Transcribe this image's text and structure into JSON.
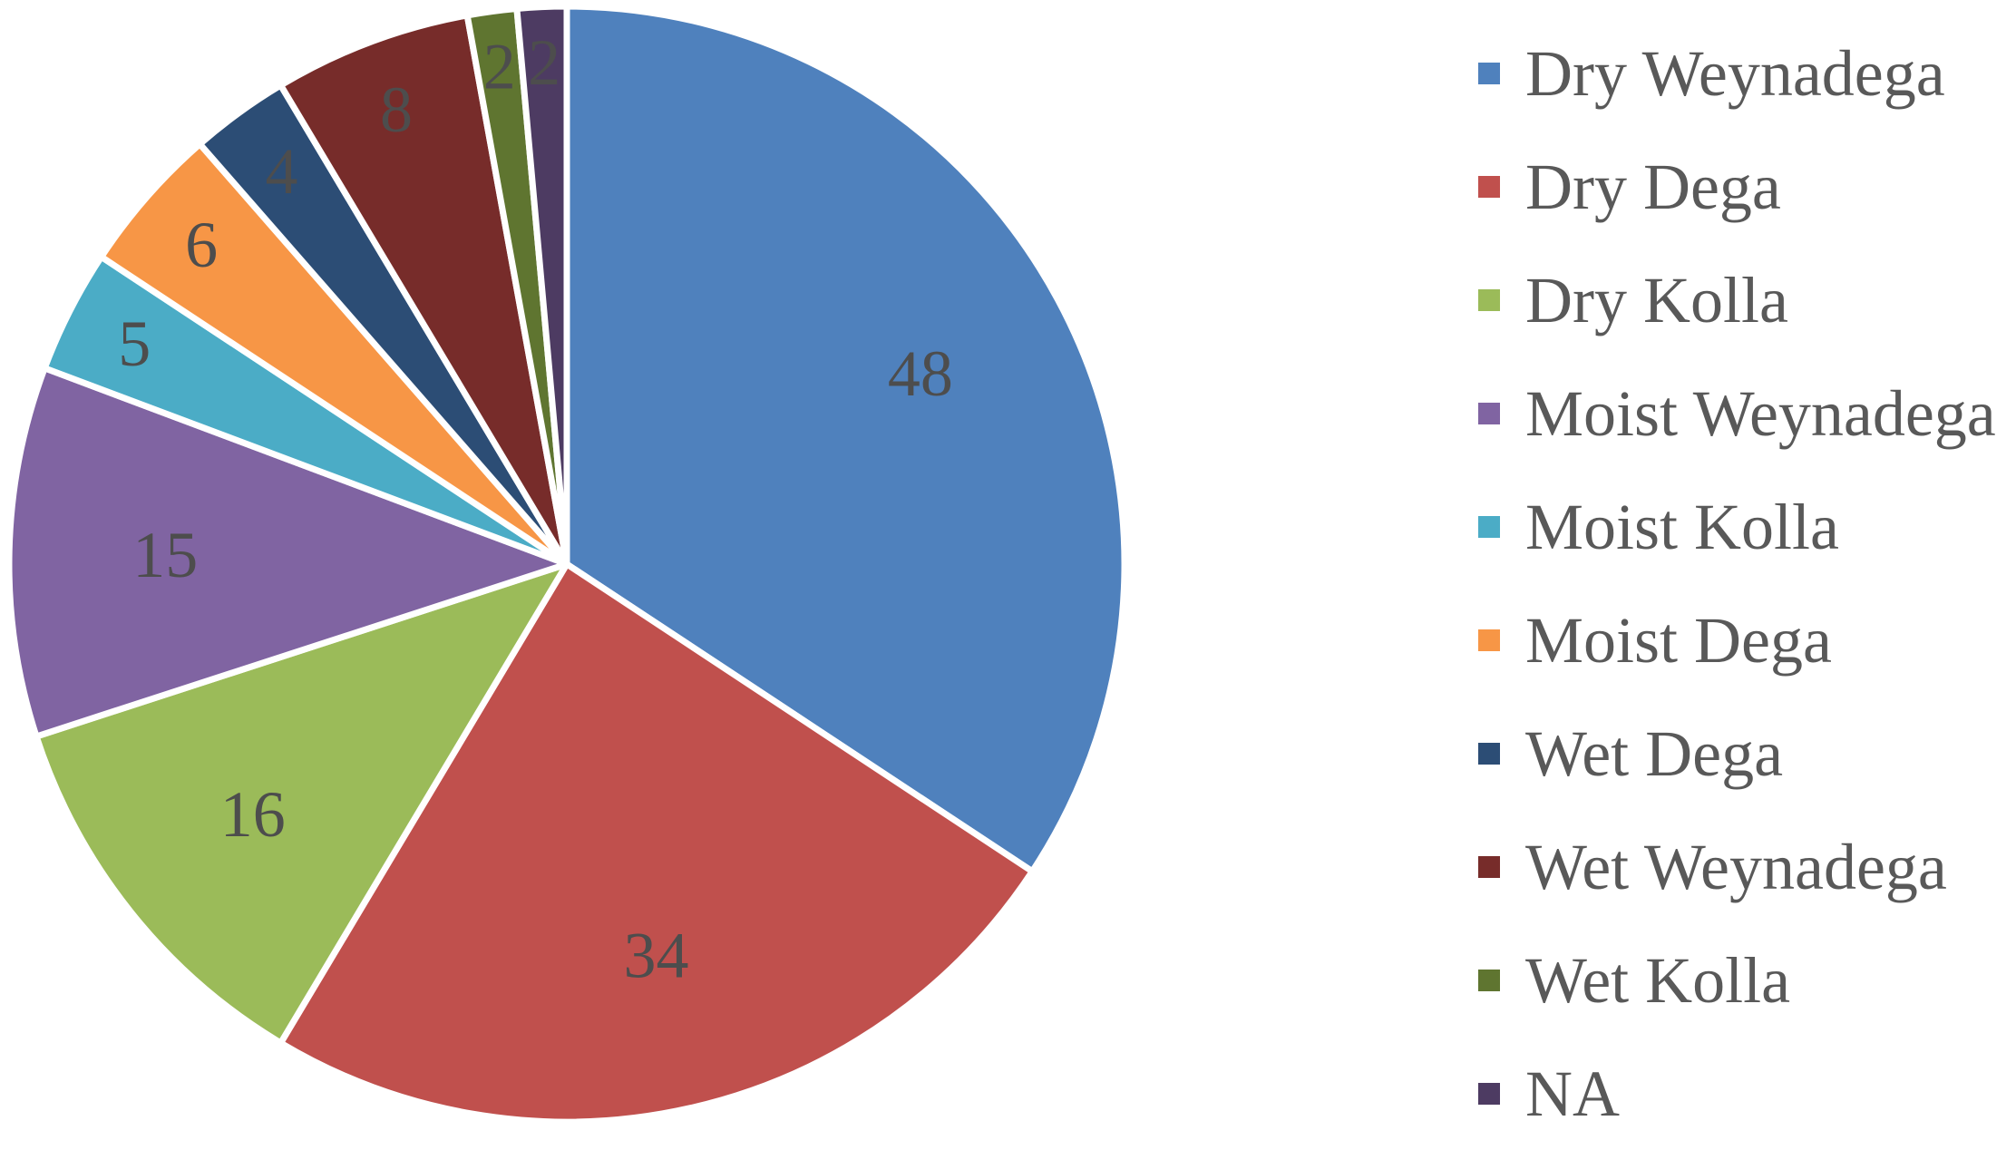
{
  "chart_data": {
    "type": "pie",
    "title": "",
    "legend_position": "right",
    "slices": [
      {
        "name": "Dry Weynadega",
        "value": 48,
        "color": "#4F81BD"
      },
      {
        "name": "Dry Dega",
        "value": 34,
        "color": "#C0504D"
      },
      {
        "name": "Dry Kolla",
        "value": 16,
        "color": "#9BBB59"
      },
      {
        "name": "Moist Weynadega",
        "value": 15,
        "color": "#8064A2"
      },
      {
        "name": "Moist Kolla",
        "value": 5,
        "color": "#4BACC6"
      },
      {
        "name": "Moist Dega",
        "value": 6,
        "color": "#F79646"
      },
      {
        "name": "Wet Dega",
        "value": 4,
        "color": "#2C4D75"
      },
      {
        "name": "Wet Weynadega",
        "value": 8,
        "color": "#772C2A"
      },
      {
        "name": "Wet Kolla",
        "value": 2,
        "color": "#5F7530"
      },
      {
        "name": "NA",
        "value": 2,
        "color": "#4D3B62"
      }
    ]
  }
}
